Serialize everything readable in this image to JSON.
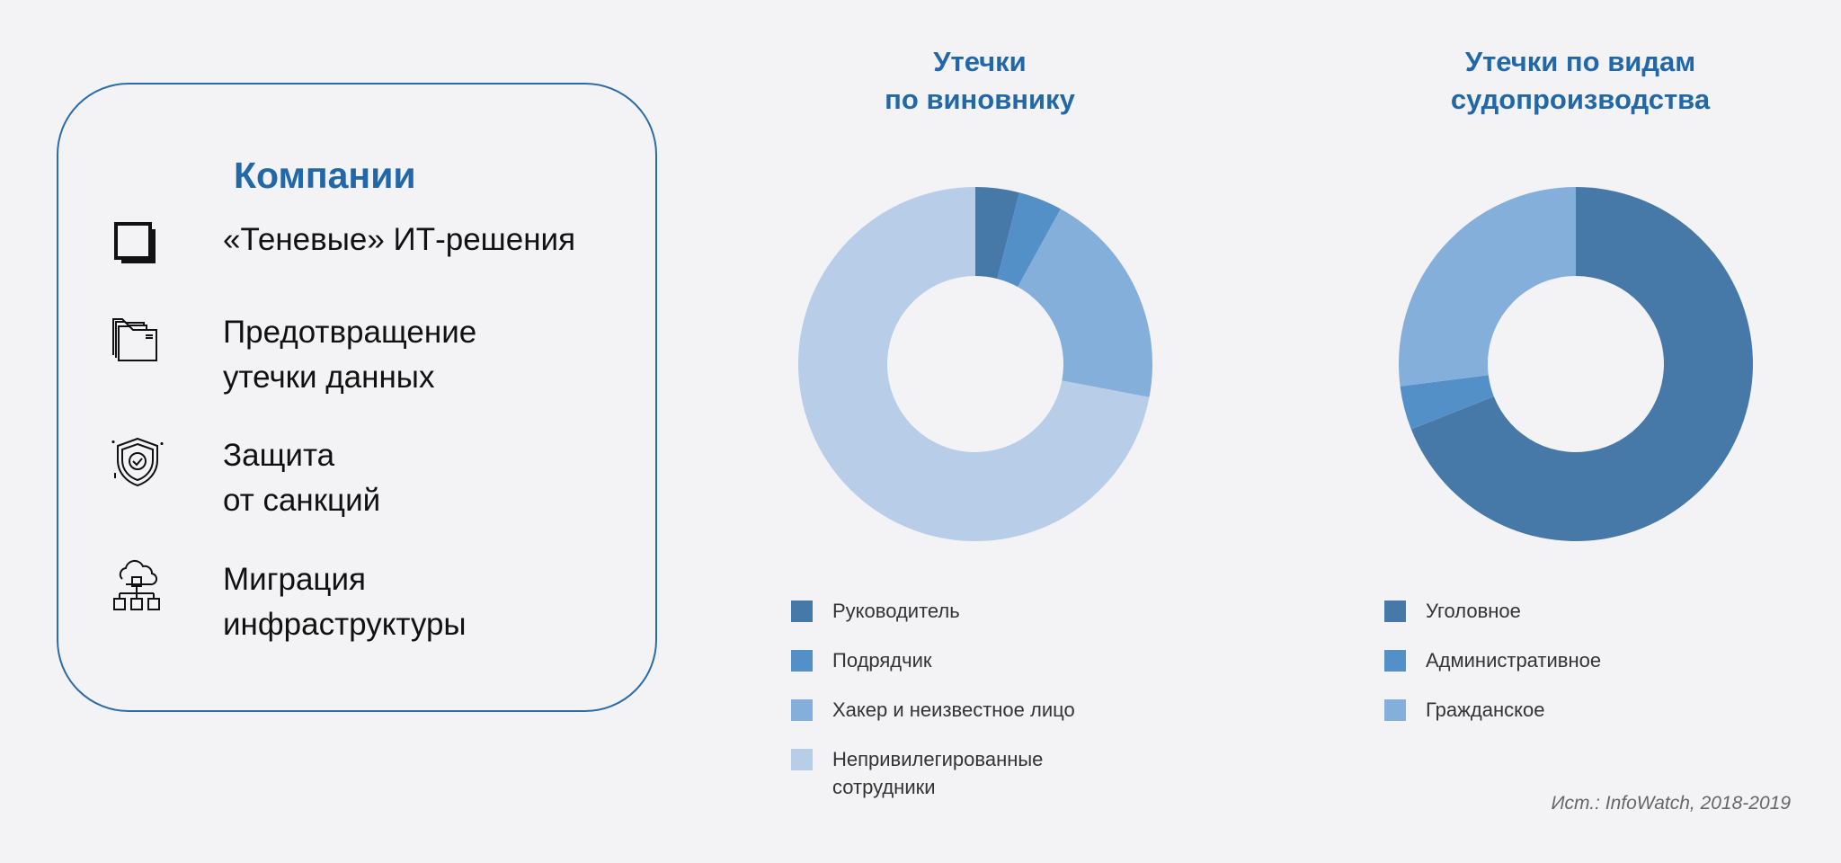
{
  "panel": {
    "title": "Компании",
    "items": [
      {
        "icon": "shadow-square-icon",
        "lines": [
          "«Теневые» ИТ-решения"
        ]
      },
      {
        "icon": "folders-icon",
        "lines": [
          "Предотвращение",
          "утечки данных"
        ]
      },
      {
        "icon": "shield-check-icon",
        "lines": [
          "Защита",
          "от санкций"
        ]
      },
      {
        "icon": "cloud-network-icon",
        "lines": [
          "Миграция",
          "инфраструктуры"
        ]
      }
    ]
  },
  "chart_data": [
    {
      "type": "pie",
      "donut": true,
      "title_lines": [
        "Утечки",
        "по виновнику"
      ],
      "categories": [
        "Руководитель",
        "Подрядчик",
        "Хакер и неизвестное лицо",
        "Непривилегированные сотрудники"
      ],
      "legend_lines": [
        [
          "Руководитель"
        ],
        [
          "Подрядчик"
        ],
        [
          "Хакер и неизвестное лицо"
        ],
        [
          "Непривилегированные",
          "сотрудники"
        ]
      ],
      "values": [
        4,
        4,
        20,
        72
      ],
      "unit": "%",
      "colors": [
        "#4679a8",
        "#5490c8",
        "#85afdb",
        "#b8cde8"
      ],
      "legend": "bottom"
    },
    {
      "type": "pie",
      "donut": true,
      "title_lines": [
        "Утечки по видам",
        "судопроизводства"
      ],
      "categories": [
        "Уголовное",
        "Административное",
        "Гражданское"
      ],
      "legend_lines": [
        [
          "Уголовное"
        ],
        [
          "Административное"
        ],
        [
          "Гражданское"
        ]
      ],
      "values": [
        69,
        4,
        27
      ],
      "unit": "%",
      "colors": [
        "#4679a8",
        "#5490c8",
        "#85afdb"
      ],
      "legend": "bottom"
    }
  ],
  "source": "Ист.: InfoWatch, 2018-2019",
  "colors": {
    "accent": "#2268a8",
    "background": "#f3f3f5"
  }
}
